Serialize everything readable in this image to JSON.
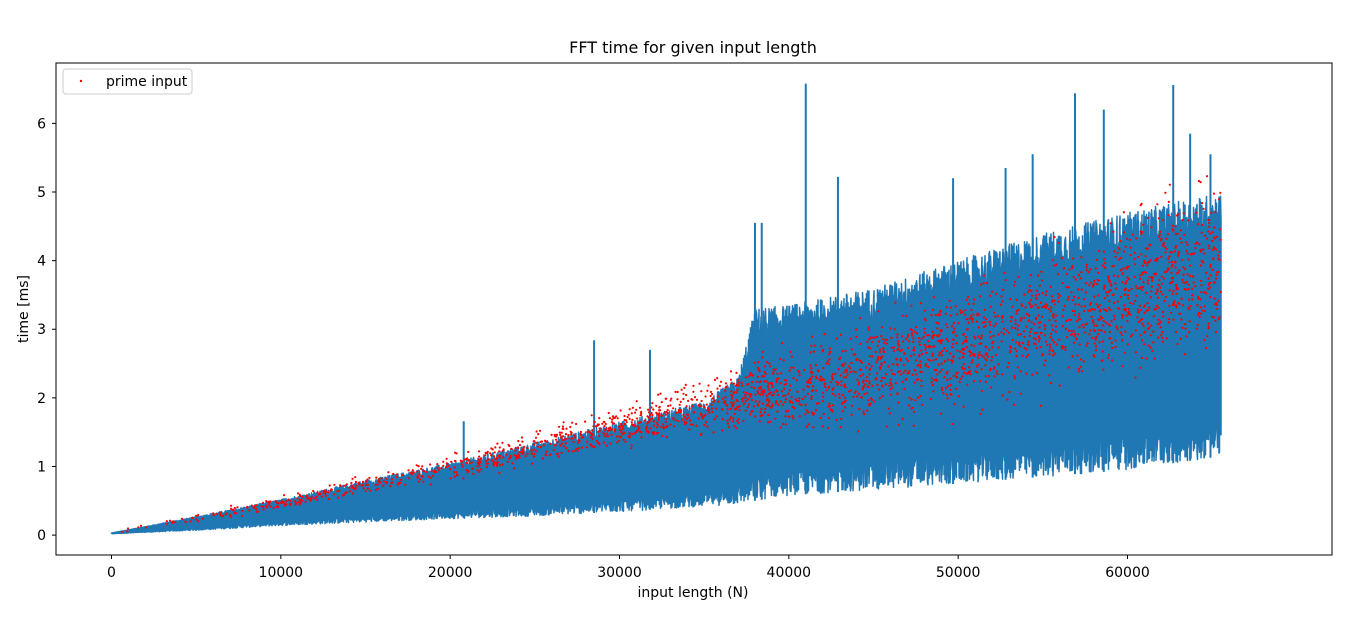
{
  "chart_data": {
    "type": "line",
    "title": "FFT time for given input length",
    "xlabel": "input length (N)",
    "ylabel": "time [ms]",
    "xlim": [
      -3277,
      72077
    ],
    "ylim": [
      -0.29,
      6.88
    ],
    "xticks": [
      0,
      10000,
      20000,
      30000,
      40000,
      50000,
      60000
    ],
    "yticks": [
      0,
      1,
      2,
      3,
      4,
      5,
      6
    ],
    "x_max": 65536,
    "grid": false,
    "legend": {
      "placement": "top-left",
      "entries": [
        "prime input"
      ]
    },
    "colors": {
      "series": "#1f77b4",
      "prime": "#ff0000"
    },
    "series": [
      {
        "name": "",
        "style": "line",
        "envelope": {
          "x": [
            0,
            5000,
            10000,
            15000,
            20000,
            25000,
            30000,
            35000,
            37000,
            38000,
            40000,
            45000,
            50000,
            55000,
            60000,
            65536
          ],
          "lower": [
            0.02,
            0.07,
            0.14,
            0.19,
            0.24,
            0.28,
            0.34,
            0.42,
            0.45,
            0.5,
            0.58,
            0.66,
            0.75,
            0.85,
            0.95,
            1.15
          ],
          "upper": [
            0.03,
            0.27,
            0.52,
            0.8,
            1.05,
            1.35,
            1.65,
            1.95,
            2.3,
            3.3,
            3.35,
            3.6,
            4.0,
            4.4,
            4.7,
            5.0
          ]
        },
        "spikes": [
          {
            "x": 20800,
            "y": 1.66
          },
          {
            "x": 28500,
            "y": 2.84
          },
          {
            "x": 31800,
            "y": 2.7
          },
          {
            "x": 38000,
            "y": 4.55
          },
          {
            "x": 38400,
            "y": 4.55
          },
          {
            "x": 41000,
            "y": 6.58
          },
          {
            "x": 42900,
            "y": 5.22
          },
          {
            "x": 49700,
            "y": 5.2
          },
          {
            "x": 52800,
            "y": 5.35
          },
          {
            "x": 54400,
            "y": 5.55
          },
          {
            "x": 56900,
            "y": 6.44
          },
          {
            "x": 58600,
            "y": 6.2
          },
          {
            "x": 62700,
            "y": 6.56
          },
          {
            "x": 63700,
            "y": 5.85
          },
          {
            "x": 64900,
            "y": 5.55
          }
        ]
      },
      {
        "name": "prime input",
        "style": "points",
        "trend": {
          "x": [
            0,
            10000,
            20000,
            30000,
            38000,
            40000,
            50000,
            60000,
            65536
          ],
          "y": [
            0.03,
            0.47,
            0.97,
            1.57,
            2.05,
            2.1,
            2.7,
            3.55,
            3.95
          ]
        },
        "spread": [
          0.02,
          0.06,
          0.12,
          0.2,
          0.3,
          0.45,
          0.55,
          0.7,
          0.8
        ]
      }
    ]
  }
}
